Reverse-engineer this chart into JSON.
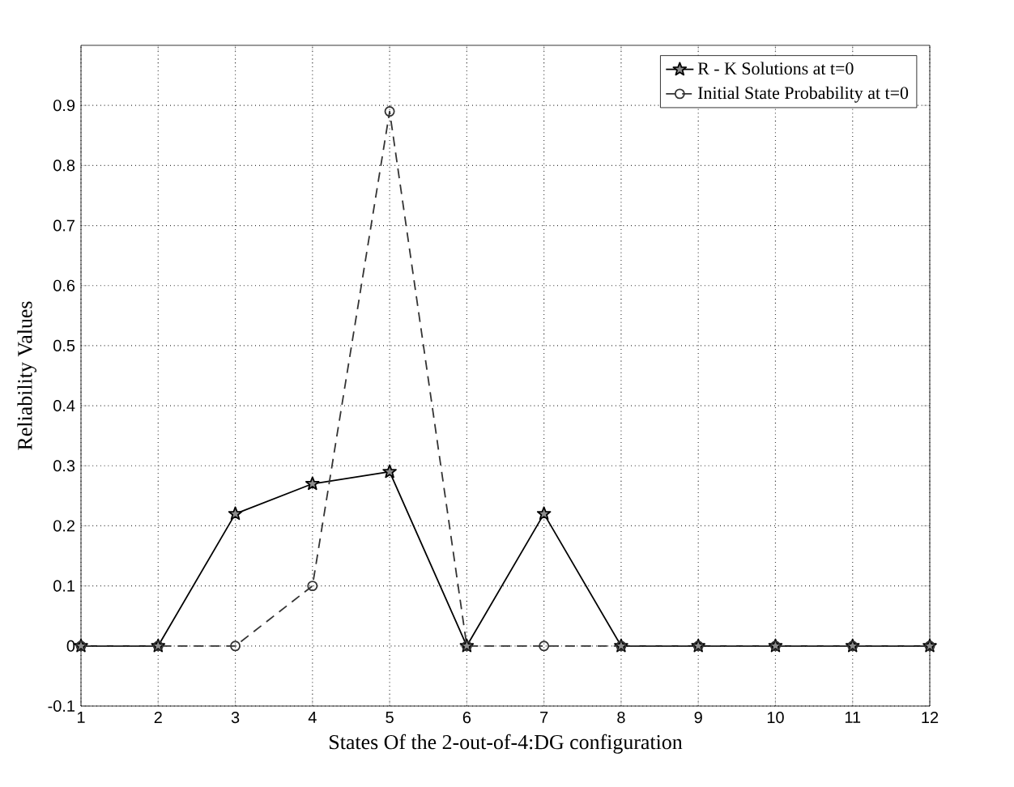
{
  "chart_data": {
    "type": "line",
    "xlabel": "States Of the 2-out-of-4:DG configuration",
    "ylabel": "Reliability Values",
    "x": [
      1,
      2,
      3,
      4,
      5,
      6,
      7,
      8,
      9,
      10,
      11,
      12
    ],
    "series": [
      {
        "name": "R - K Solutions at t=0",
        "color": "#000000",
        "marker": "star",
        "line_style": "solid",
        "values": [
          0,
          0,
          0.22,
          0.27,
          0.29,
          0,
          0.22,
          0,
          0,
          0,
          0,
          0
        ]
      },
      {
        "name": "Initial State Probability at t=0",
        "color": "#333333",
        "marker": "circle",
        "line_style": "dashed",
        "values": [
          0,
          0,
          0,
          0.1,
          0.89,
          0,
          0,
          0,
          0,
          0,
          0,
          0
        ]
      }
    ],
    "xlim": [
      1,
      12
    ],
    "ylim": [
      -0.1,
      1
    ],
    "xticks": [
      1,
      2,
      3,
      4,
      5,
      6,
      7,
      8,
      9,
      10,
      11,
      12
    ],
    "yticks": [
      -0.1,
      0,
      0.1,
      0.2,
      0.3,
      0.4,
      0.5,
      0.6,
      0.7,
      0.8,
      0.9
    ],
    "grid": true,
    "legend": "top right"
  }
}
